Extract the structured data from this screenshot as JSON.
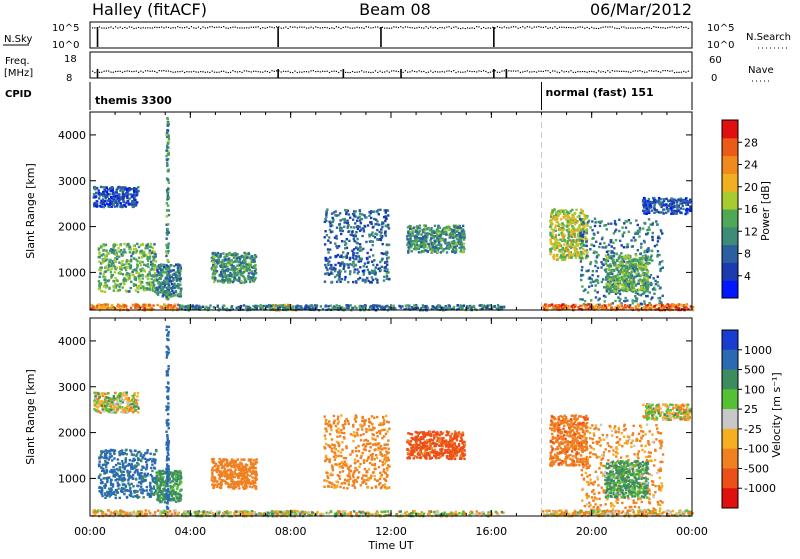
{
  "header": {
    "station": "Halley (fitACF)",
    "beam": "Beam 08",
    "date": "06/Mar/2012"
  },
  "info_panels": {
    "nsky_label": "N.Sky",
    "nsky_ticks": [
      "10^5",
      "10^0"
    ],
    "nsearch_label": "N.Search",
    "nsearch_ticks": [
      "10^5",
      "10^0"
    ],
    "freq_label": "Freq.",
    "freq_unit": "[MHz]",
    "freq_ticks": [
      "18",
      "8"
    ],
    "nave_label": "Nave",
    "nave_ticks": [
      "60",
      "0"
    ],
    "cpid_label": "CPID",
    "cpid_modes": [
      {
        "name": "themis 3300",
        "start_hour": 0
      },
      {
        "name": "normal (fast) 151",
        "start_hour": 18
      }
    ]
  },
  "chart_data": [
    {
      "type": "heatmap",
      "panel": "power",
      "xlabel": "",
      "ylabel": "Slant Range [km]",
      "xlim": [
        0,
        24
      ],
      "ylim": [
        180,
        4500
      ],
      "y_ticks": [
        1000,
        2000,
        3000,
        4000
      ],
      "colorbar": {
        "label": "Power [dB]",
        "range": [
          0,
          32
        ],
        "ticks": [
          4,
          8,
          12,
          16,
          20,
          24,
          28
        ],
        "colors": [
          "#0018ff",
          "#1a3cb0",
          "#2a5fa0",
          "#3c8c78",
          "#4fa855",
          "#a8cc30",
          "#f0b020",
          "#f08a1c",
          "#ec5a18",
          "#e01010"
        ]
      },
      "echo_regions": [
        {
          "t0": 0.1,
          "t1": 1.9,
          "r0": 2450,
          "r1": 2900,
          "value": 6
        },
        {
          "t0": 0.3,
          "t1": 2.6,
          "r0": 600,
          "r1": 1650,
          "value": 14
        },
        {
          "t0": 2.6,
          "t1": 3.6,
          "r0": 500,
          "r1": 1200,
          "value": 10
        },
        {
          "t0": 3.0,
          "t1": 3.1,
          "r0": 250,
          "r1": 4400,
          "value": 12
        },
        {
          "t0": 0.0,
          "t1": 3.5,
          "r0": 200,
          "r1": 330,
          "value": 24
        },
        {
          "t0": 4.8,
          "t1": 6.6,
          "r0": 800,
          "r1": 1450,
          "value": 12
        },
        {
          "t0": 7.1,
          "t1": 8.3,
          "r0": 200,
          "r1": 320,
          "value": 22
        },
        {
          "t0": 9.3,
          "t1": 11.9,
          "r0": 800,
          "r1": 2400,
          "value": 8
        },
        {
          "t0": 12.6,
          "t1": 14.9,
          "r0": 1450,
          "r1": 2050,
          "value": 12
        },
        {
          "t0": 3.5,
          "t1": 16.5,
          "r0": 200,
          "r1": 310,
          "value": 10
        },
        {
          "t0": 18.3,
          "t1": 19.8,
          "r0": 1300,
          "r1": 2400,
          "value": 18
        },
        {
          "t0": 19.5,
          "t1": 22.8,
          "r0": 300,
          "r1": 2200,
          "value": 10
        },
        {
          "t0": 20.5,
          "t1": 22.2,
          "r0": 600,
          "r1": 1400,
          "value": 14
        },
        {
          "t0": 22.0,
          "t1": 23.9,
          "r0": 2300,
          "r1": 2650,
          "value": 6
        },
        {
          "t0": 18.0,
          "t1": 24.0,
          "r0": 200,
          "r1": 330,
          "value": 26
        }
      ]
    },
    {
      "type": "heatmap",
      "panel": "velocity",
      "xlabel": "Time UT",
      "ylabel": "Slant Range [km]",
      "xlim": [
        0,
        24
      ],
      "ylim": [
        180,
        4500
      ],
      "x_ticks": [
        "00:00",
        "04:00",
        "08:00",
        "12:00",
        "16:00",
        "20:00",
        "00:00"
      ],
      "y_ticks": [
        1000,
        2000,
        3000,
        4000
      ],
      "colorbar": {
        "label": "Velocity [m s⁻¹]",
        "tick_labels": [
          "1000",
          "500",
          "100",
          "25",
          "-25",
          "-100",
          "-500",
          "-1000"
        ],
        "colors": [
          "#1a3cd0",
          "#2a6ab0",
          "#3c8c60",
          "#55c033",
          "#c8c8c8",
          "#f4b020",
          "#f08020",
          "#ec5018",
          "#e01010"
        ]
      },
      "echo_regions": [
        {
          "t0": 0.1,
          "t1": 1.9,
          "r0": 2450,
          "r1": 2900,
          "value": 0
        },
        {
          "t0": 0.3,
          "t1": 2.6,
          "r0": 600,
          "r1": 1650,
          "value": 600
        },
        {
          "t0": 2.6,
          "t1": 3.6,
          "r0": 500,
          "r1": 1200,
          "value": 200
        },
        {
          "t0": 3.0,
          "t1": 3.1,
          "r0": 250,
          "r1": 4400,
          "value": 800
        },
        {
          "t0": 0.0,
          "t1": 3.5,
          "r0": 200,
          "r1": 330,
          "value": -80
        },
        {
          "t0": 4.8,
          "t1": 6.6,
          "r0": 800,
          "r1": 1450,
          "value": -300
        },
        {
          "t0": 7.1,
          "t1": 8.3,
          "r0": 200,
          "r1": 320,
          "value": -60
        },
        {
          "t0": 9.3,
          "t1": 11.9,
          "r0": 800,
          "r1": 2400,
          "value": -200
        },
        {
          "t0": 12.6,
          "t1": 14.9,
          "r0": 1450,
          "r1": 2050,
          "value": -600
        },
        {
          "t0": 3.5,
          "t1": 16.5,
          "r0": 200,
          "r1": 310,
          "value": 0
        },
        {
          "t0": 18.3,
          "t1": 19.8,
          "r0": 1300,
          "r1": 2400,
          "value": -400
        },
        {
          "t0": 19.5,
          "t1": 22.8,
          "r0": 300,
          "r1": 2200,
          "value": -150
        },
        {
          "t0": 20.5,
          "t1": 22.2,
          "r0": 600,
          "r1": 1400,
          "value": 150
        },
        {
          "t0": 22.0,
          "t1": 23.9,
          "r0": 2300,
          "r1": 2650,
          "value": 0
        },
        {
          "t0": 18.0,
          "t1": 24.0,
          "r0": 200,
          "r1": 330,
          "value": -70
        }
      ]
    }
  ]
}
